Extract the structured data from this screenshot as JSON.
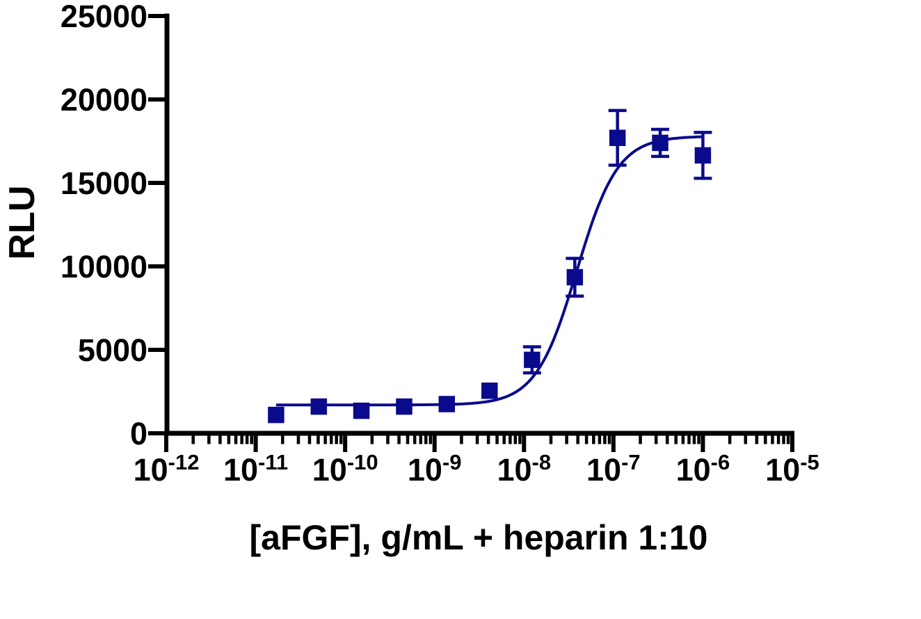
{
  "figure": {
    "background_color": "#ffffff",
    "axis_color": "#000000",
    "series_color": "#0a0a8c"
  },
  "chart_data": {
    "type": "scatter",
    "title": "",
    "xlabel": "[aFGF], g/mL + heparin 1:10",
    "ylabel": "RLU",
    "x_scale": "log10",
    "xlim": [
      1e-12,
      1e-05
    ],
    "ylim": [
      0,
      25000
    ],
    "grid": false,
    "legend": null,
    "y_ticks": [
      0,
      5000,
      10000,
      15000,
      20000,
      25000
    ],
    "x_major_ticks": {
      "base": "10",
      "exponents": [
        -12,
        -11,
        -10,
        -9,
        -8,
        -7,
        -6,
        -5
      ]
    },
    "x_minor_ticks": "log multiples 2-9 per decade",
    "series": [
      {
        "marker": "square",
        "color": "#0a0a8c",
        "points": [
          {
            "x": 1.69e-11,
            "y": 1100,
            "err": null
          },
          {
            "x": 5.08e-11,
            "y": 1600,
            "err": null
          },
          {
            "x": 1.52e-10,
            "y": 1350,
            "err": null
          },
          {
            "x": 4.57e-10,
            "y": 1600,
            "err": null
          },
          {
            "x": 1.37e-09,
            "y": 1750,
            "err": null
          },
          {
            "x": 4.12e-09,
            "y": 2550,
            "err": null
          },
          {
            "x": 1.23e-08,
            "y": 4400,
            "err": 780
          },
          {
            "x": 3.7e-08,
            "y": 9350,
            "err": 1130
          },
          {
            "x": 1.11e-07,
            "y": 17700,
            "err": 1640
          },
          {
            "x": 3.33e-07,
            "y": 17400,
            "err": 810
          },
          {
            "x": 1e-06,
            "y": 16650,
            "err": 1375
          }
        ]
      }
    ],
    "fit_curve": {
      "model": "sigmoidal dose-response (4PL)",
      "bottom": 1700,
      "top": 17800,
      "ec50": 3.9e-08,
      "hill": 1.9,
      "x_range": [
        1.69e-11,
        1e-06
      ],
      "color": "#0a0a8c"
    }
  }
}
